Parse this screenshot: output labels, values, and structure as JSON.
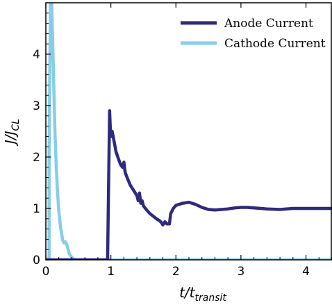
{
  "chart_data": {
    "type": "line",
    "xlabel": {
      "main": "t/t",
      "sub": "transit"
    },
    "ylabel": {
      "main": "J/J",
      "sub": "CL"
    },
    "xlim": [
      0,
      4.4
    ],
    "ylim": [
      0,
      5
    ],
    "x_ticks": [
      "0",
      "1",
      "2",
      "3",
      "4"
    ],
    "y_ticks": [
      "0",
      "1",
      "2",
      "3",
      "4"
    ],
    "legend_position": "top-right",
    "grid": false,
    "series": [
      {
        "name": "Anode Current",
        "color": "#2e2a7e",
        "points": [
          [
            0.0,
            0.0
          ],
          [
            0.95,
            0.0
          ],
          [
            0.95,
            0.1
          ],
          [
            0.97,
            1.9
          ],
          [
            0.98,
            2.9
          ],
          [
            0.99,
            2.6
          ],
          [
            1.0,
            2.4
          ],
          [
            1.02,
            2.5
          ],
          [
            1.05,
            2.3
          ],
          [
            1.08,
            2.1
          ],
          [
            1.12,
            1.95
          ],
          [
            1.15,
            1.85
          ],
          [
            1.18,
            1.8
          ],
          [
            1.2,
            1.9
          ],
          [
            1.22,
            1.7
          ],
          [
            1.25,
            1.6
          ],
          [
            1.3,
            1.45
          ],
          [
            1.35,
            1.35
          ],
          [
            1.4,
            1.25
          ],
          [
            1.42,
            1.15
          ],
          [
            1.44,
            1.3
          ],
          [
            1.46,
            1.1
          ],
          [
            1.48,
            1.15
          ],
          [
            1.5,
            1.05
          ],
          [
            1.55,
            0.97
          ],
          [
            1.6,
            0.9
          ],
          [
            1.65,
            0.85
          ],
          [
            1.7,
            0.8
          ],
          [
            1.75,
            0.76
          ],
          [
            1.78,
            0.72
          ],
          [
            1.8,
            0.68
          ],
          [
            1.83,
            0.74
          ],
          [
            1.86,
            0.7
          ],
          [
            1.9,
            0.7
          ],
          [
            1.92,
            0.9
          ],
          [
            1.96,
            1.0
          ],
          [
            2.0,
            1.06
          ],
          [
            2.1,
            1.1
          ],
          [
            2.2,
            1.12
          ],
          [
            2.3,
            1.08
          ],
          [
            2.4,
            1.02
          ],
          [
            2.5,
            0.98
          ],
          [
            2.6,
            0.97
          ],
          [
            2.7,
            0.98
          ],
          [
            2.8,
            0.99
          ],
          [
            2.9,
            1.01
          ],
          [
            3.0,
            1.02
          ],
          [
            3.1,
            1.02
          ],
          [
            3.2,
            1.01
          ],
          [
            3.4,
            0.99
          ],
          [
            3.6,
            0.98
          ],
          [
            3.8,
            1.0
          ],
          [
            4.0,
            1.0
          ],
          [
            4.2,
            1.0
          ],
          [
            4.4,
            1.0
          ]
        ]
      },
      {
        "name": "Cathode Current",
        "color": "#87cdea",
        "points": [
          [
            0.05,
            0.0
          ],
          [
            0.05,
            2.0
          ],
          [
            0.06,
            3.5
          ],
          [
            0.07,
            5.0
          ],
          [
            0.09,
            5.0
          ],
          [
            0.1,
            4.5
          ],
          [
            0.12,
            3.5
          ],
          [
            0.14,
            2.5
          ],
          [
            0.16,
            1.8
          ],
          [
            0.18,
            1.3
          ],
          [
            0.2,
            0.95
          ],
          [
            0.22,
            0.7
          ],
          [
            0.24,
            0.52
          ],
          [
            0.26,
            0.38
          ],
          [
            0.28,
            0.33
          ],
          [
            0.3,
            0.35
          ],
          [
            0.32,
            0.3
          ],
          [
            0.34,
            0.22
          ],
          [
            0.36,
            0.12
          ],
          [
            0.38,
            0.08
          ],
          [
            0.4,
            0.05
          ],
          [
            0.42,
            0.02
          ],
          [
            0.45,
            0.0
          ],
          [
            1.0,
            0.0
          ],
          [
            2.0,
            0.0
          ],
          [
            3.0,
            0.0
          ],
          [
            4.4,
            0.0
          ]
        ]
      }
    ]
  }
}
